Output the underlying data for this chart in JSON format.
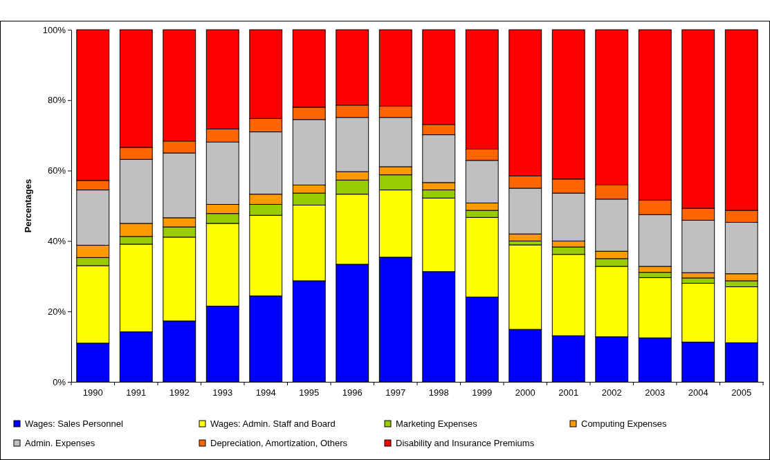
{
  "chart_data": {
    "type": "bar",
    "stacked": true,
    "ylabel": "Percentages",
    "categories": [
      "1990",
      "1991",
      "1992",
      "1993",
      "1994",
      "1995",
      "1996",
      "1997",
      "1998",
      "1999",
      "2000",
      "2001",
      "2002",
      "2003",
      "2004",
      "2005"
    ],
    "ylim": [
      0,
      100
    ],
    "yticks": [
      {
        "value": 0,
        "label": "0%"
      },
      {
        "value": 20,
        "label": "20%"
      },
      {
        "value": 40,
        "label": "40%"
      },
      {
        "value": 60,
        "label": "60%"
      },
      {
        "value": 80,
        "label": "80%"
      },
      {
        "value": 100,
        "label": "100%"
      }
    ],
    "legend": "bottom",
    "grid": false,
    "series": [
      {
        "name": "Wages: Sales Personnel",
        "color": "#0000ff",
        "values": [
          11,
          14.2,
          17.3,
          21.5,
          24.4,
          28.7,
          33.4,
          35.4,
          31.3,
          24.1,
          14.9,
          13.1,
          12.8,
          12.5,
          11.3,
          11.1
        ]
      },
      {
        "name": "Wages: Admin. Staff and Board",
        "color": "#ffff00",
        "values": [
          22,
          24.9,
          23.8,
          23.5,
          22.9,
          21.5,
          19.9,
          19.1,
          20.9,
          22.6,
          24,
          23.1,
          20,
          17.1,
          16.7,
          15.9
        ]
      },
      {
        "name": "Marketing Expenses",
        "color": "#99cc00",
        "values": [
          2.3,
          2.2,
          2.9,
          2.8,
          3.1,
          3.4,
          4,
          4.3,
          2.3,
          2,
          1.1,
          2.1,
          2.2,
          1.5,
          1.5,
          1.7
        ]
      },
      {
        "name": "Computing Expenses",
        "color": "#ff9900",
        "values": [
          3.5,
          3.7,
          2.6,
          2.6,
          2.9,
          2.3,
          2.4,
          2.3,
          2.1,
          2.1,
          2,
          1.7,
          2.1,
          1.7,
          1.5,
          2
        ]
      },
      {
        "name": "Admin. Expenses",
        "color": "#c0c0c0",
        "values": [
          15.7,
          18.2,
          18.4,
          17.7,
          17.7,
          18.6,
          15.4,
          14,
          13.6,
          12.1,
          13,
          13.6,
          14.8,
          14.7,
          14.9,
          14.6
        ]
      },
      {
        "name": "Depreciation, Amortization, Others",
        "color": "#ff6600",
        "values": [
          2.7,
          3.4,
          3.4,
          3.7,
          3.8,
          3.5,
          3.5,
          3.2,
          2.9,
          3.2,
          3.5,
          4,
          4,
          4.1,
          3.4,
          3.4
        ]
      },
      {
        "name": "Disability and Insurance Premiums",
        "color": "#ff0000",
        "values": [
          42.8,
          33.4,
          31.6,
          28.2,
          25.2,
          22,
          21.4,
          21.7,
          26.9,
          33.9,
          41.5,
          42.4,
          44.1,
          48.4,
          50.7,
          51.3
        ]
      }
    ]
  }
}
